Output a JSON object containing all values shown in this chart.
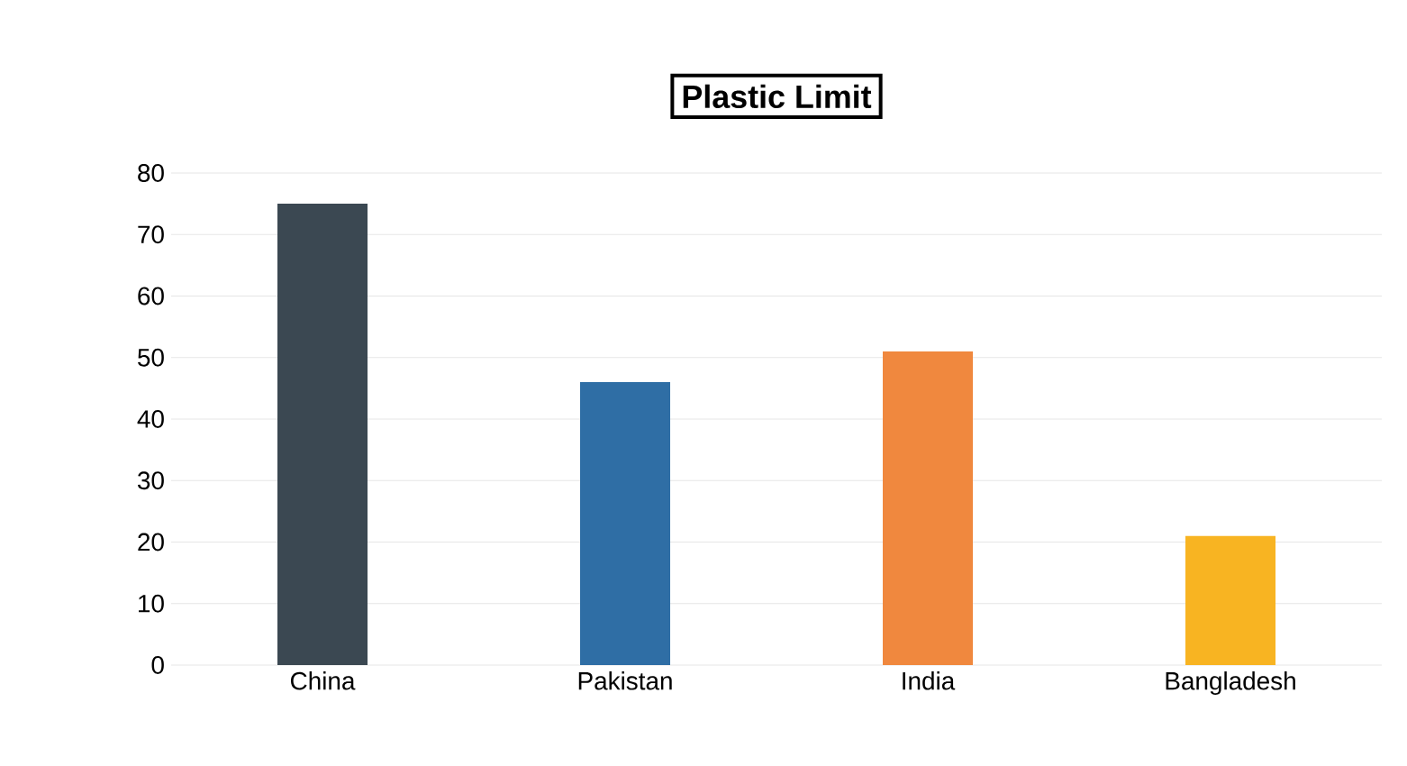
{
  "chart_data": {
    "type": "bar",
    "title": "Plastic Limit",
    "categories": [
      "China",
      "Pakistan",
      "India",
      "Bangladesh"
    ],
    "values": [
      75,
      46,
      51,
      21
    ],
    "colors": [
      "#3b4852",
      "#2f6ea5",
      "#f0883e",
      "#f8b422"
    ],
    "ylim": [
      0,
      80
    ],
    "yticks": [
      0,
      10,
      20,
      30,
      40,
      50,
      60,
      70,
      80
    ],
    "grid": "y"
  }
}
